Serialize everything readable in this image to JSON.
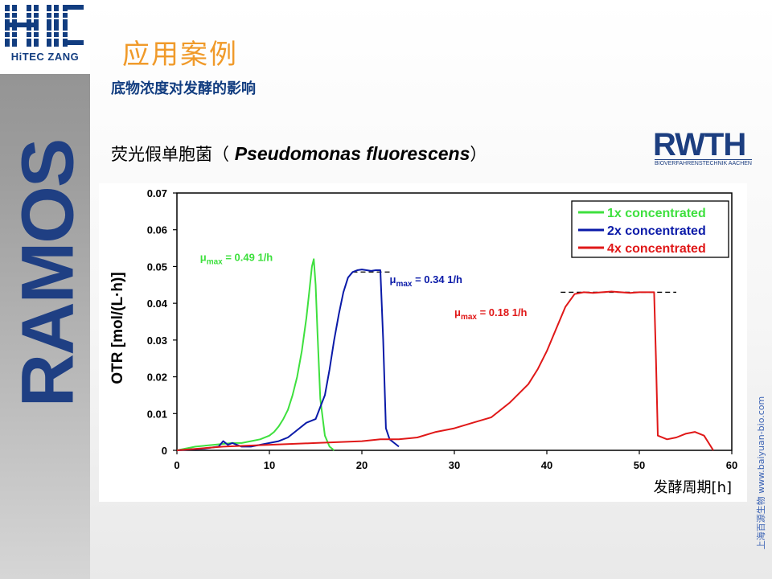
{
  "sidebar": {
    "logo_text": "HiTEC ZANG",
    "ramos_text": "RAMOS"
  },
  "slide": {
    "title": "应用案例",
    "subtitle": "底物浓度对发酵的影响",
    "organism_prefix": "荧光假单胞菌（ ",
    "organism_latin": "Pseudomonas fluorescens",
    "organism_suffix": "）"
  },
  "rwth_logo": {
    "text": "RWTH",
    "subtext": "BIOVERFAHRENSTECHNIK AACHEN"
  },
  "watermark": "上海百源生物 www.baiyuan-bio.com",
  "colors": {
    "title_orange": "#f09a2a",
    "navy": "#123d80",
    "series_1x": "#3ee03e",
    "series_2x": "#0a1aa8",
    "series_4x": "#e01818"
  },
  "chart_data": {
    "type": "line",
    "xlabel": "发酵周期[h]",
    "ylabel": "OTR [mol/(L·h)]",
    "xlim": [
      0,
      60
    ],
    "ylim": [
      0,
      0.07
    ],
    "x_ticks": [
      "0",
      "10",
      "20",
      "30",
      "40",
      "50",
      "60"
    ],
    "y_ticks": [
      "0",
      "0.01",
      "0.02",
      "0.03",
      "0.04",
      "0.05",
      "0.06",
      "0.07"
    ],
    "grid": false,
    "legend_position": "top-right",
    "series": [
      {
        "name": "1x concentrated",
        "color": "#3ee03e",
        "x": [
          0,
          2,
          4,
          6,
          7,
          8,
          9,
          10,
          10.5,
          11,
          11.5,
          12,
          12.5,
          13,
          13.5,
          14,
          14.3,
          14.6,
          14.8,
          15,
          15.2,
          15.5,
          16,
          16.5,
          17
        ],
        "y": [
          0,
          0.001,
          0.0015,
          0.002,
          0.002,
          0.0025,
          0.003,
          0.004,
          0.005,
          0.0065,
          0.0085,
          0.011,
          0.015,
          0.02,
          0.027,
          0.036,
          0.043,
          0.05,
          0.052,
          0.045,
          0.032,
          0.014,
          0.004,
          0.001,
          0
        ]
      },
      {
        "name": "2x concentrated",
        "color": "#0a1aa8",
        "x": [
          0,
          3,
          4.5,
          5,
          5.5,
          6,
          7,
          8,
          9,
          10,
          11,
          12,
          13,
          14,
          15,
          16,
          16.5,
          17,
          17.5,
          18,
          18.5,
          19,
          19.5,
          20,
          20.5,
          21,
          21.5,
          22,
          22.3,
          22.6,
          23,
          23.5,
          24
        ],
        "y": [
          0,
          0.0005,
          0.001,
          0.0025,
          0.0015,
          0.002,
          0.001,
          0.001,
          0.0015,
          0.002,
          0.0025,
          0.0035,
          0.0055,
          0.0075,
          0.0085,
          0.015,
          0.022,
          0.03,
          0.037,
          0.043,
          0.047,
          0.0485,
          0.049,
          0.0492,
          0.049,
          0.0488,
          0.049,
          0.049,
          0.03,
          0.006,
          0.003,
          0.002,
          0.001
        ]
      },
      {
        "name": "4x concentrated",
        "color": "#e01818",
        "x": [
          0,
          5,
          10,
          15,
          20,
          22,
          24,
          26,
          28,
          30,
          32,
          34,
          36,
          38,
          39,
          40,
          41,
          42,
          43,
          44,
          45,
          46,
          47,
          48,
          49,
          50,
          51,
          51.6,
          51.8,
          52,
          53,
          54,
          55,
          56,
          57,
          58
        ],
        "y": [
          0,
          0.001,
          0.0015,
          0.002,
          0.0025,
          0.003,
          0.003,
          0.0035,
          0.005,
          0.006,
          0.0075,
          0.009,
          0.013,
          0.018,
          0.022,
          0.027,
          0.033,
          0.039,
          0.0425,
          0.043,
          0.0428,
          0.043,
          0.0432,
          0.043,
          0.0428,
          0.043,
          0.043,
          0.043,
          0.025,
          0.004,
          0.003,
          0.0035,
          0.0045,
          0.005,
          0.004,
          0
        ]
      }
    ],
    "annotations": [
      {
        "text": "μmax = 0.49 1/h",
        "mu": "μ",
        "sub": "max",
        "rest": " = 0.49 1/h",
        "color": "#3ee03e",
        "x": 2.5,
        "y": 0.0515
      },
      {
        "text": "μmax = 0.34 1/h",
        "mu": "μ",
        "sub": "max",
        "rest": " = 0.34 1/h",
        "color": "#0a1aa8",
        "x": 23,
        "y": 0.0455
      },
      {
        "text": "μmax = 0.18 1/h",
        "mu": "μ",
        "sub": "max",
        "rest": " = 0.18 1/h",
        "color": "#e01818",
        "x": 30,
        "y": 0.0365
      }
    ],
    "reference_lines": [
      {
        "color": "#000000",
        "dashed": true,
        "x1": 19,
        "x2": 23,
        "y": 0.0485
      },
      {
        "color": "#000000",
        "dashed": true,
        "x1": 41.5,
        "x2": 54,
        "y": 0.043
      }
    ]
  }
}
